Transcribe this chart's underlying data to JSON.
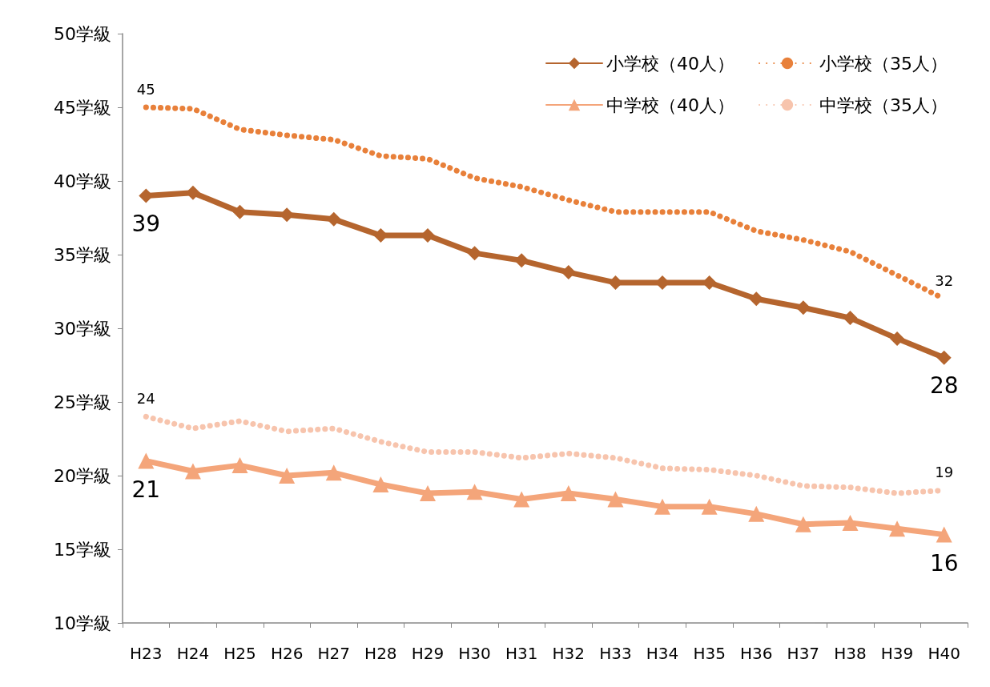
{
  "chart_data": {
    "type": "line",
    "categories": [
      "H23",
      "H24",
      "H25",
      "H26",
      "H27",
      "H28",
      "H29",
      "H30",
      "H31",
      "H32",
      "H33",
      "H34",
      "H35",
      "H36",
      "H37",
      "H38",
      "H39",
      "H40"
    ],
    "series": [
      {
        "name": "小学校（40人）",
        "color": "#b5652e",
        "marker": "diamond",
        "line_style": "solid",
        "values": [
          39,
          39.2,
          37.9,
          37.7,
          37.4,
          36.3,
          36.3,
          35.1,
          34.6,
          33.8,
          33.1,
          33.1,
          33.1,
          32.0,
          31.4,
          30.7,
          29.3,
          28
        ],
        "value_labels": [
          "39",
          null,
          null,
          null,
          null,
          null,
          null,
          null,
          null,
          null,
          null,
          null,
          null,
          null,
          null,
          null,
          null,
          "28"
        ]
      },
      {
        "name": "小学校（35人）",
        "color": "#e8803a",
        "marker": "none",
        "line_style": "dotted",
        "values": [
          45,
          44.9,
          43.5,
          43.1,
          42.8,
          41.7,
          41.5,
          40.2,
          39.6,
          38.7,
          37.9,
          37.9,
          37.9,
          36.6,
          36.0,
          35.2,
          33.6,
          32
        ],
        "value_labels": [
          "45",
          null,
          null,
          null,
          null,
          null,
          null,
          null,
          null,
          null,
          null,
          null,
          null,
          null,
          null,
          null,
          null,
          "32"
        ]
      },
      {
        "name": "中学校（40人）",
        "color": "#f4a57a",
        "marker": "triangle",
        "line_style": "solid",
        "values": [
          21,
          20.3,
          20.7,
          20.0,
          20.2,
          19.4,
          18.8,
          18.9,
          18.4,
          18.8,
          18.4,
          17.9,
          17.9,
          17.4,
          16.7,
          16.8,
          16.4,
          16
        ],
        "value_labels": [
          "21",
          null,
          null,
          null,
          null,
          null,
          null,
          null,
          null,
          null,
          null,
          null,
          null,
          null,
          null,
          null,
          null,
          "16"
        ]
      },
      {
        "name": "中学校（35人）",
        "color": "#f7c4ad",
        "marker": "none",
        "line_style": "dotted",
        "values": [
          24,
          23.2,
          23.7,
          23.0,
          23.2,
          22.3,
          21.6,
          21.6,
          21.2,
          21.5,
          21.2,
          20.5,
          20.4,
          20.0,
          19.3,
          19.2,
          18.8,
          19
        ],
        "value_labels": [
          "24",
          null,
          null,
          null,
          null,
          null,
          null,
          null,
          null,
          null,
          null,
          null,
          null,
          null,
          null,
          null,
          null,
          "19"
        ]
      }
    ],
    "ylim": [
      10,
      50
    ],
    "yticks": [
      {
        "value": 10,
        "label": "10学級"
      },
      {
        "value": 15,
        "label": "15学級"
      },
      {
        "value": 20,
        "label": "20学級"
      },
      {
        "value": 25,
        "label": "25学級"
      },
      {
        "value": 30,
        "label": "30学級"
      },
      {
        "value": 35,
        "label": "35学級"
      },
      {
        "value": 40,
        "label": "40学級"
      },
      {
        "value": 45,
        "label": "45学級"
      },
      {
        "value": 50,
        "label": "50学級"
      }
    ],
    "grid": false,
    "legend": "top right"
  }
}
